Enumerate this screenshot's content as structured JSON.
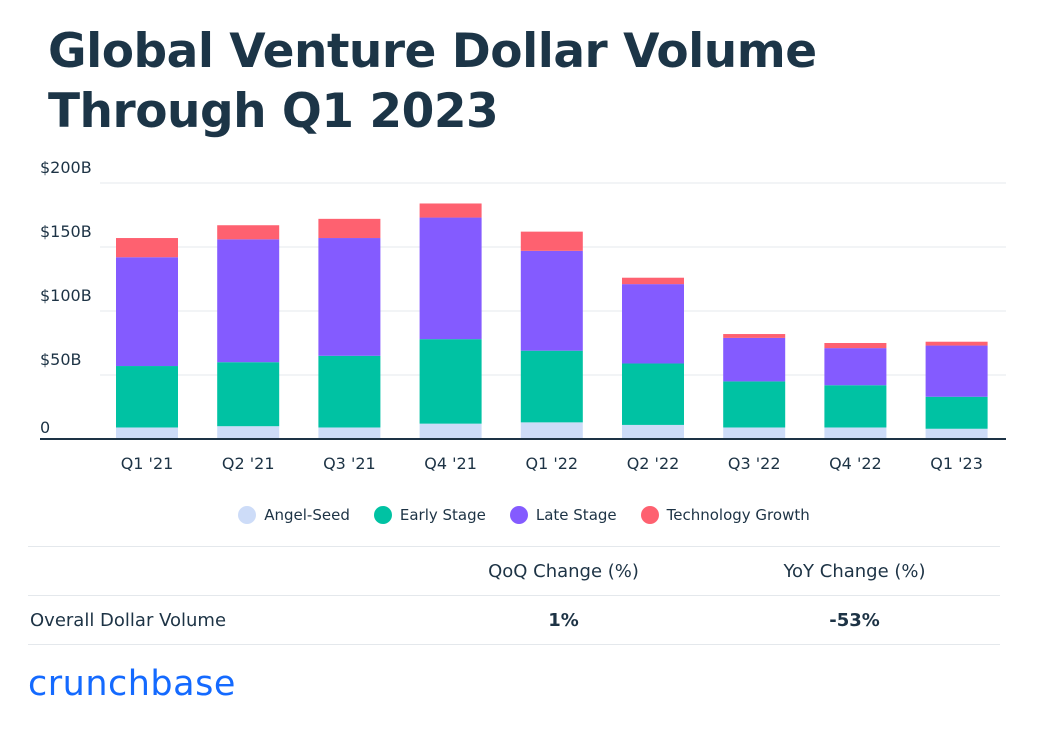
{
  "title": "Global Venture Dollar Volume Through Q1 2023",
  "chart_data": {
    "type": "bar",
    "stacked": true,
    "categories": [
      "Q1 '21",
      "Q2 '21",
      "Q3 '21",
      "Q4 '21",
      "Q1 '22",
      "Q2 '22",
      "Q3 '22",
      "Q4 '22",
      "Q1 '23"
    ],
    "series": [
      {
        "name": "Angel-Seed",
        "color": "#cddcf8",
        "values": [
          9,
          10,
          9,
          12,
          13,
          11,
          9,
          9,
          8
        ]
      },
      {
        "name": "Early Stage",
        "color": "#00c2a3",
        "values": [
          48,
          50,
          56,
          66,
          56,
          48,
          36,
          33,
          25
        ]
      },
      {
        "name": "Late Stage",
        "color": "#845bff",
        "values": [
          85,
          96,
          92,
          95,
          78,
          62,
          34,
          29,
          40
        ]
      },
      {
        "name": "Technology Growth",
        "color": "#fe6170",
        "values": [
          15,
          11,
          15,
          11,
          15,
          5,
          3,
          4,
          3
        ]
      }
    ],
    "y_ticks": [
      "0",
      "$50B",
      "$100B",
      "$150B",
      "$200B"
    ],
    "ylim": [
      0,
      200
    ],
    "grid": true,
    "legend_position": "bottom"
  },
  "table": {
    "headers": [
      "",
      "QoQ Change (%)",
      "YoY Change (%)"
    ],
    "row": {
      "label": "Overall Dollar Volume",
      "qoq": "1%",
      "yoy": "-53%"
    }
  },
  "logo": "crunchbase"
}
